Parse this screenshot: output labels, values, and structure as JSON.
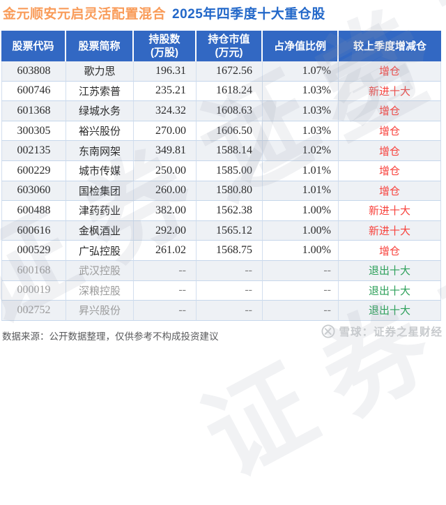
{
  "title": {
    "fund": "金元顺安元启灵活配置混合",
    "period": "2025年四季度十大重仓股"
  },
  "chart_data": {
    "type": "table",
    "title": "金元顺安元启灵活配置混合 2025年四季度十大重仓股",
    "columns": [
      {
        "l1": "股票代码"
      },
      {
        "l1": "股票简称"
      },
      {
        "l1": "持股数",
        "l2": "(万股)"
      },
      {
        "l1": "持仓市值",
        "l2": "(万元)"
      },
      {
        "l1": "占净值比例"
      },
      {
        "l1": "较上季度增减仓"
      }
    ],
    "rows": [
      {
        "code": "603808",
        "name": "歌力思",
        "shares": "196.31",
        "value": "1672.56",
        "ratio": "1.07%",
        "change": "增仓",
        "change_color": "red",
        "exited": false
      },
      {
        "code": "600746",
        "name": "江苏索普",
        "shares": "235.21",
        "value": "1618.24",
        "ratio": "1.03%",
        "change": "新进十大",
        "change_color": "red",
        "exited": false
      },
      {
        "code": "601368",
        "name": "绿城水务",
        "shares": "324.32",
        "value": "1608.63",
        "ratio": "1.03%",
        "change": "增仓",
        "change_color": "red",
        "exited": false
      },
      {
        "code": "300305",
        "name": "裕兴股份",
        "shares": "270.00",
        "value": "1606.50",
        "ratio": "1.03%",
        "change": "增仓",
        "change_color": "red",
        "exited": false
      },
      {
        "code": "002135",
        "name": "东南网架",
        "shares": "349.81",
        "value": "1588.14",
        "ratio": "1.02%",
        "change": "增仓",
        "change_color": "red",
        "exited": false
      },
      {
        "code": "600229",
        "name": "城市传媒",
        "shares": "250.00",
        "value": "1585.00",
        "ratio": "1.01%",
        "change": "增仓",
        "change_color": "red",
        "exited": false
      },
      {
        "code": "603060",
        "name": "国检集团",
        "shares": "260.00",
        "value": "1580.80",
        "ratio": "1.01%",
        "change": "增仓",
        "change_color": "red",
        "exited": false
      },
      {
        "code": "600488",
        "name": "津药药业",
        "shares": "382.00",
        "value": "1562.38",
        "ratio": "1.00%",
        "change": "新进十大",
        "change_color": "red",
        "exited": false
      },
      {
        "code": "600616",
        "name": "金枫酒业",
        "shares": "292.00",
        "value": "1565.12",
        "ratio": "1.00%",
        "change": "新进十大",
        "change_color": "red",
        "exited": false
      },
      {
        "code": "000529",
        "name": "广弘控股",
        "shares": "261.02",
        "value": "1568.75",
        "ratio": "1.00%",
        "change": "增仓",
        "change_color": "red",
        "exited": false
      },
      {
        "code": "600168",
        "name": "武汉控股",
        "shares": "--",
        "value": "--",
        "ratio": "--",
        "change": "退出十大",
        "change_color": "green",
        "exited": true
      },
      {
        "code": "000019",
        "name": "深粮控股",
        "shares": "--",
        "value": "--",
        "ratio": "--",
        "change": "退出十大",
        "change_color": "green",
        "exited": true
      },
      {
        "code": "002752",
        "name": "昇兴股份",
        "shares": "--",
        "value": "--",
        "ratio": "--",
        "change": "退出十大",
        "change_color": "green",
        "exited": true
      }
    ]
  },
  "footer": {
    "source": "数据来源：公开数据整理，仅供参考不构成投资建议",
    "brand": "雪球：证券之星财经"
  },
  "watermark": {
    "text": "证券之星"
  },
  "colors": {
    "header_bg": "#3268c3",
    "title_orange": "#f99c5a",
    "title_blue": "#2368c9",
    "increase_red": "#f8423c",
    "exit_green": "#2da05a",
    "alt_row": "#eef1f5",
    "grid_border": "#c6d7eb"
  }
}
